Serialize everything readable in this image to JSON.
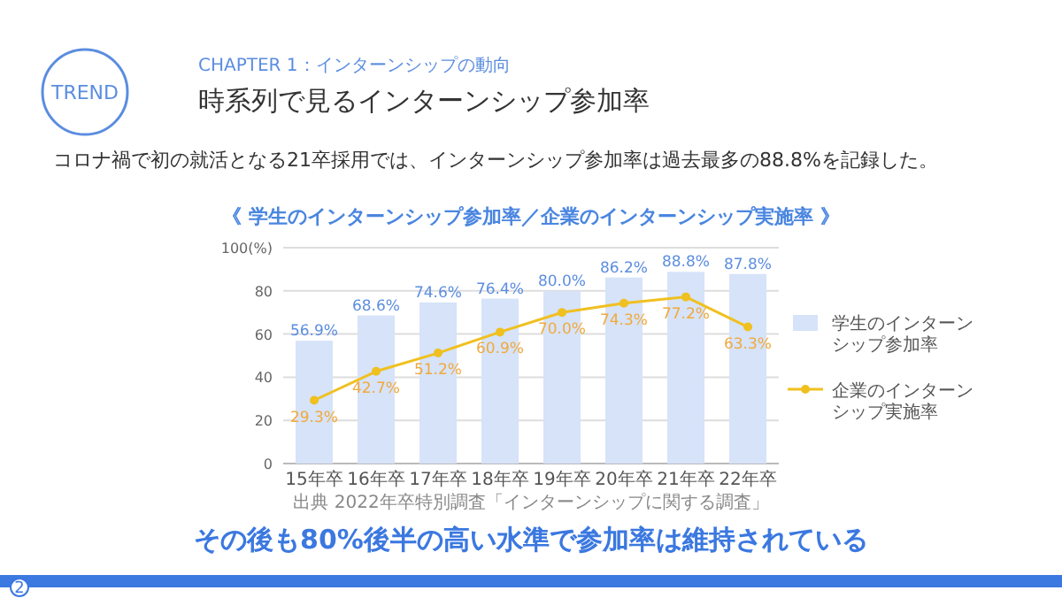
{
  "chart_data": {
    "type": "bar",
    "title": "《 学生のインターンシップ参加率／企業のインターンシップ実施率 》",
    "categories": [
      "15年卒",
      "16年卒",
      "17年卒",
      "18年卒",
      "19年卒",
      "20年卒",
      "21年卒",
      "22年卒"
    ],
    "series": [
      {
        "name": "学生のインターンシップ参加率",
        "color": "#d6e3f8",
        "values": [
          56.9,
          68.6,
          74.6,
          76.4,
          80.0,
          86.2,
          88.8,
          87.8
        ],
        "value_labels": [
          "56.9%",
          "68.6%",
          "74.6%",
          "76.4%",
          "80.0%",
          "86.2%",
          "88.8%",
          "87.8%"
        ]
      },
      {
        "name": "企業のインターンシップ実施率",
        "type": "line",
        "color": "#f0c020",
        "values": [
          29.3,
          42.7,
          51.2,
          60.9,
          70.0,
          74.3,
          77.2,
          63.3
        ],
        "value_labels": [
          "29.3%",
          "42.7%",
          "51.2%",
          "60.9%",
          "70.0%",
          "74.3%",
          "77.2%",
          "63.3%"
        ]
      }
    ],
    "ylim": [
      0,
      100
    ],
    "yticks": [
      0,
      20,
      40,
      60,
      80,
      {
        "value": 100,
        "label": "100(%)"
      }
    ],
    "grid": "y",
    "legend": "right",
    "marker": "circle",
    "line_style": "solid",
    "annotations": [
      "TREND",
      "CHAPTER 1：インターンシップの動向",
      "時系列で見るインターンシップ参加率",
      "コロナ禍で初の就活となる21卒採用では、インターンシップ参加率は過去最多の88.8%を記録した。",
      "出典 2022年卒特別調査「インターンシップに関する調査」",
      "その後も80%後半の高い水準で参加率は維持されている",
      "2"
    ]
  }
}
